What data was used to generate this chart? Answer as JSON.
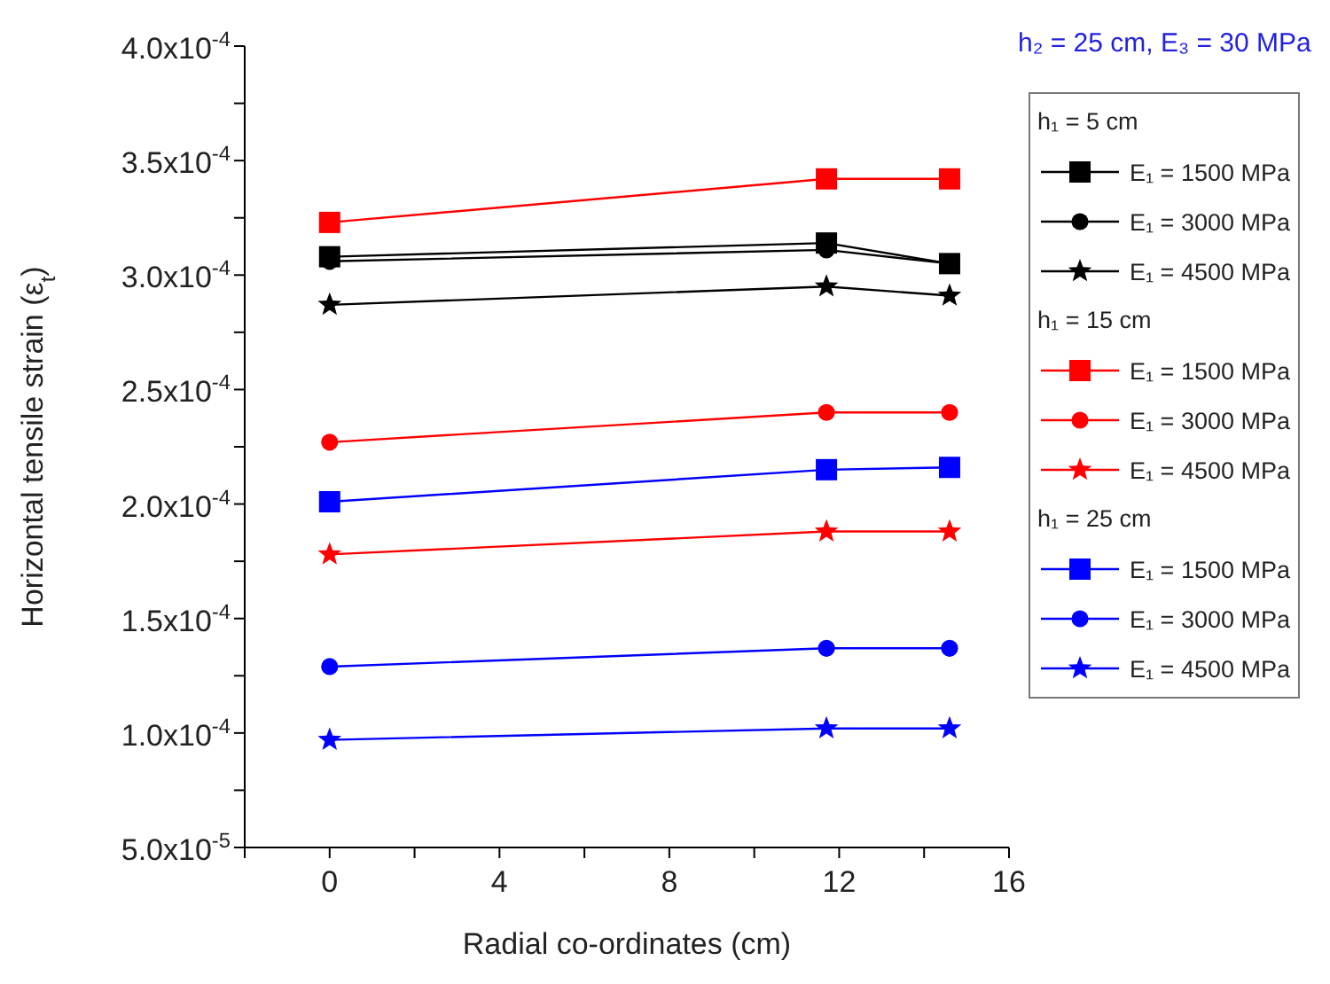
{
  "chart_data": {
    "type": "line",
    "xlabel": "Radial co-ordinates (cm)",
    "ylabel": "Horizontal tensile strain (ε$_{t}$)",
    "annotations": [
      "h₂ = 25 cm, E₃ = 30 MPa",
      "h₁ = 5 cm",
      "h₁ = 15 cm",
      "h₁ = 25 cm"
    ],
    "x": [
      0,
      11.7,
      14.6
    ],
    "xlim": [
      -2,
      16
    ],
    "xticks": [
      {
        "value": -2,
        "label": null
      },
      0,
      {
        "value": 2,
        "label": null
      },
      4,
      {
        "value": 6,
        "label": null
      },
      8,
      {
        "value": 10,
        "label": null
      },
      12,
      {
        "value": 14,
        "label": null
      },
      16
    ],
    "ylim": [
      5e-05,
      0.0004
    ],
    "yticks": [
      {
        "value": 5e-05,
        "label": "5.0x10$^{-5}$"
      },
      {
        "value": 7.5e-05,
        "label": null
      },
      {
        "value": 0.0001,
        "label": "1.0x10$^{-4}$"
      },
      {
        "value": 0.000125,
        "label": null
      },
      {
        "value": 0.00015,
        "label": "1.5x10$^{-4}$"
      },
      {
        "value": 0.000175,
        "label": null
      },
      {
        "value": 0.0002,
        "label": "2.0x10$^{-4}$"
      },
      {
        "value": 0.000225,
        "label": null
      },
      {
        "value": 0.00025,
        "label": "2.5x10$^{-4}$"
      },
      {
        "value": 0.000275,
        "label": null
      },
      {
        "value": 0.0003,
        "label": "3.0x10$^{-4}$"
      },
      {
        "value": 0.000325,
        "label": null
      },
      {
        "value": 0.00035,
        "label": "3.5x10$^{-4}$"
      },
      {
        "value": 0.000375,
        "label": null
      },
      {
        "value": 0.0004,
        "label": "4.0x10$^{-4}$"
      }
    ],
    "grid": false,
    "legend": "right",
    "line_style": "solid",
    "series": [
      {
        "name": "E₁ = 1500 MPa",
        "color": "#000000",
        "marker": "square",
        "values": [
          0.000308,
          0.000314,
          0.000305
        ]
      },
      {
        "name": "E₁ = 3000 MPa",
        "color": "#000000",
        "marker": "circle",
        "values": [
          0.000306,
          0.000311,
          0.000305
        ]
      },
      {
        "name": "E₁ = 4500 MPa",
        "color": "#000000",
        "marker": "star",
        "values": [
          0.000287,
          0.000295,
          0.000291
        ]
      },
      {
        "name": "E₁ = 1500 MPa",
        "color": "#ff0000",
        "marker": "square",
        "values": [
          0.000323,
          0.000342,
          0.000342
        ]
      },
      {
        "name": "E₁ = 3000 MPa",
        "color": "#ff0000",
        "marker": "circle",
        "values": [
          0.000227,
          0.00024,
          0.00024
        ]
      },
      {
        "name": "E₁ = 4500 MPa",
        "color": "#ff0000",
        "marker": "star",
        "values": [
          0.000178,
          0.000188,
          0.000188
        ]
      },
      {
        "name": "E₁ = 1500 MPa",
        "color": "#0000ff",
        "marker": "square",
        "values": [
          0.000201,
          0.000215,
          0.000216
        ]
      },
      {
        "name": "E₁ = 3000 MPa",
        "color": "#0000ff",
        "marker": "circle",
        "values": [
          0.000129,
          0.000137,
          0.000137
        ]
      },
      {
        "name": "E₁ = 4500 MPa",
        "color": "#0000ff",
        "marker": "star",
        "values": [
          9.7e-05,
          0.000102,
          0.000102
        ]
      }
    ]
  }
}
